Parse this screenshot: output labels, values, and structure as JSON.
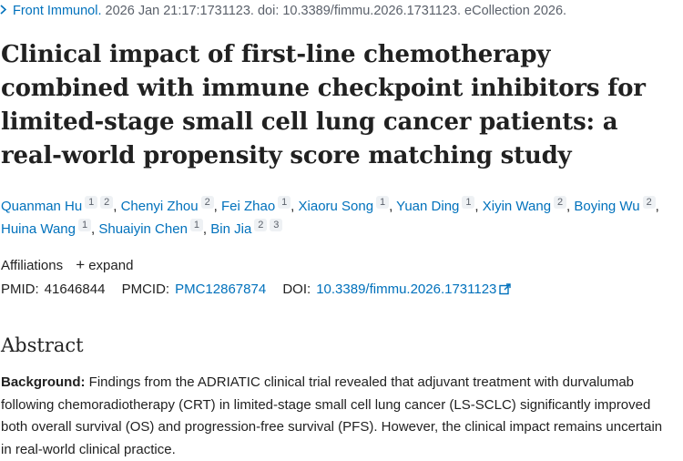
{
  "citation": {
    "journal": "Front Immunol.",
    "rest": " 2026 Jan 21:17:1731123. doi: 10.3389/fimmu.2026.1731123. eCollection 2026."
  },
  "title": "Clinical impact of first-line chemotherapy combined with immune checkpoint inhibitors for limited-stage small cell lung cancer patients: a real-world propensity score matching study",
  "authors": [
    {
      "name": "Quanman Hu",
      "affs": [
        "1",
        "2"
      ]
    },
    {
      "name": "Chenyi Zhou",
      "affs": [
        "2"
      ]
    },
    {
      "name": "Fei Zhao",
      "affs": [
        "1"
      ]
    },
    {
      "name": "Xiaoru Song",
      "affs": [
        "1"
      ]
    },
    {
      "name": "Yuan Ding",
      "affs": [
        "1"
      ]
    },
    {
      "name": "Xiyin Wang",
      "affs": [
        "2"
      ]
    },
    {
      "name": "Boying Wu",
      "affs": [
        "2"
      ]
    },
    {
      "name": "Huina Wang",
      "affs": [
        "1"
      ]
    },
    {
      "name": "Shuaiyin Chen",
      "affs": [
        "1"
      ]
    },
    {
      "name": "Bin Jia",
      "affs": [
        "2",
        "3"
      ]
    }
  ],
  "affiliations": {
    "label": "Affiliations",
    "expand_label": "expand"
  },
  "ids": {
    "pmid_label": "PMID:",
    "pmid": "41646844",
    "pmcid_label": "PMCID:",
    "pmcid": "PMC12867874",
    "doi_label": "DOI:",
    "doi": "10.3389/fimmu.2026.1731123"
  },
  "abstract": {
    "heading": "Abstract",
    "background_label": "Background:",
    "background_text": " Findings from the ADRIATIC clinical trial revealed that adjuvant treatment with durvalumab following chemoradiotherapy (CRT) in limited-stage small cell lung cancer (LS-SCLC) significantly improved both overall survival (OS) and progression-free survival (PFS). However, the clinical impact remains uncertain in real-world clinical practice."
  },
  "colors": {
    "link": "#0071bc",
    "text": "#212121",
    "muted": "#5b616b"
  }
}
